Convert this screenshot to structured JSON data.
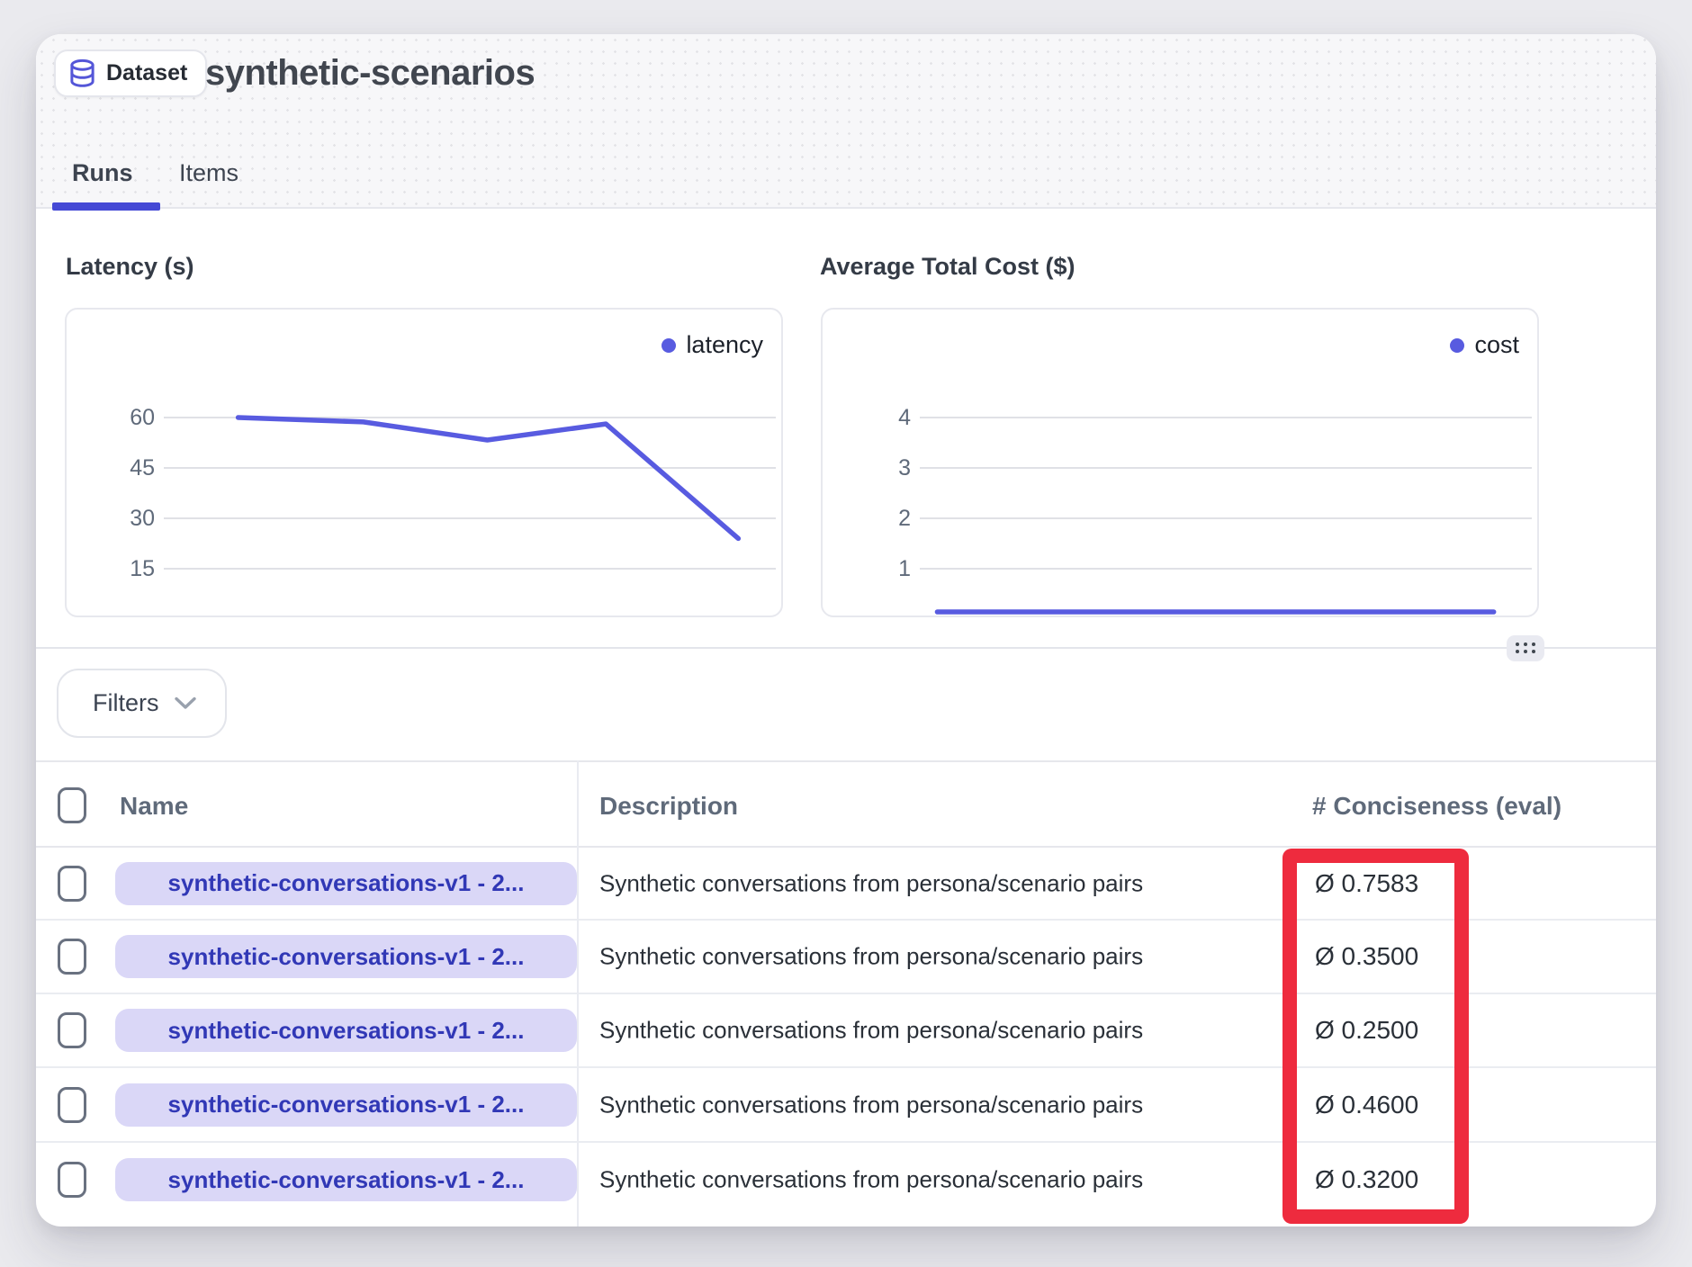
{
  "header": {
    "badge_label": "Dataset",
    "title": "synthetic-scenarios",
    "tabs": [
      {
        "label": "Runs",
        "active": true
      },
      {
        "label": "Items",
        "active": false
      }
    ]
  },
  "toolbar": {
    "filters_label": "Filters"
  },
  "chart_data": [
    {
      "type": "line",
      "title": "Latency (s)",
      "legend": "latency",
      "yticks": [
        60,
        45,
        30,
        15
      ],
      "ylim": [
        0,
        66
      ],
      "grid": true,
      "legend_position": "top-right",
      "series": [
        {
          "name": "latency",
          "points": [
            {
              "x": 0.114,
              "v": 60
            },
            {
              "x": 0.321,
              "v": 58.7
            },
            {
              "x": 0.526,
              "v": 53.3
            },
            {
              "x": 0.722,
              "v": 58.1
            },
            {
              "x": 0.941,
              "v": 24
            }
          ]
        }
      ],
      "color": "#585be0"
    },
    {
      "type": "line",
      "title": "Average Total Cost ($)",
      "legend": "cost",
      "yticks": [
        4,
        3,
        2,
        1
      ],
      "ylim": [
        0,
        4.4
      ],
      "grid": true,
      "legend_position": "top-right",
      "series": [
        {
          "name": "cost",
          "points": [
            {
              "x": 0.02,
              "v": 0.08
            },
            {
              "x": 0.94,
              "v": 0.08
            }
          ]
        }
      ],
      "color": "#585be0"
    }
  ],
  "table": {
    "columns": [
      "Name",
      "Description",
      "# Conciseness (eval)"
    ],
    "rows": [
      {
        "name": "synthetic-conversations-v1 - 2...",
        "description": "Synthetic conversations from persona/scenario pairs",
        "conciseness": "Ø 0.7583"
      },
      {
        "name": "synthetic-conversations-v1 - 2...",
        "description": "Synthetic conversations from persona/scenario pairs",
        "conciseness": "Ø 0.3500"
      },
      {
        "name": "synthetic-conversations-v1 - 2...",
        "description": "Synthetic conversations from persona/scenario pairs",
        "conciseness": "Ø 0.2500"
      },
      {
        "name": "synthetic-conversations-v1 - 2...",
        "description": "Synthetic conversations from persona/scenario pairs",
        "conciseness": "Ø 0.4600"
      },
      {
        "name": "synthetic-conversations-v1 - 2...",
        "description": "Synthetic conversations from persona/scenario pairs",
        "conciseness": "Ø 0.3200"
      }
    ]
  },
  "annotation": {
    "type": "highlight-rectangle",
    "color": "#ee2b3e",
    "target": "conciseness-column-values"
  },
  "colors": {
    "accent_indigo": "#585be0",
    "tab_underline": "#4549d5",
    "pill_bg": "#dad7f7",
    "pill_text": "#3138b6",
    "annotation_red": "#ee2b3e"
  }
}
